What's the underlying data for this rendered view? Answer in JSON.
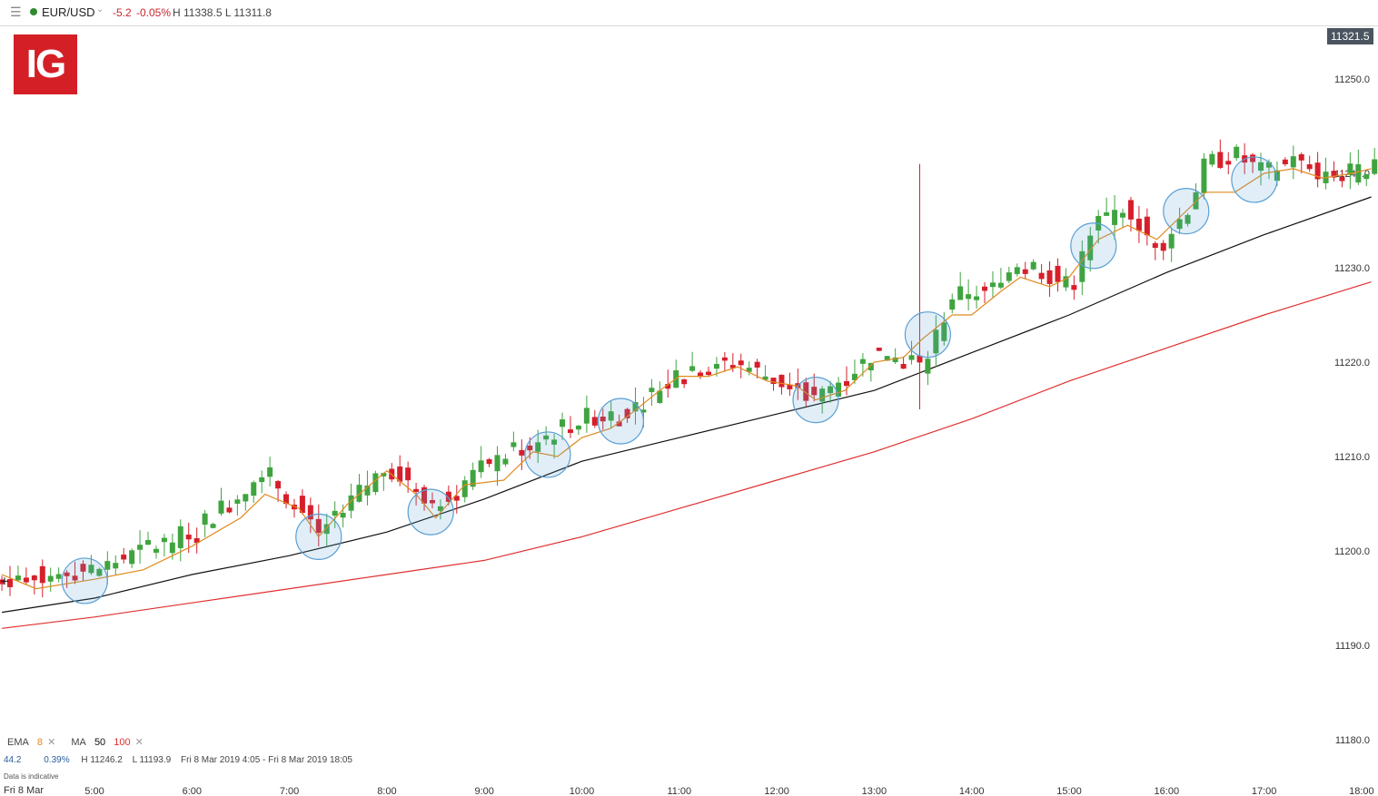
{
  "header": {
    "menu_icon": "hamburger-menu-icon",
    "symbol": "EUR/USD",
    "dropdown_icon": "chevron-down-icon",
    "change": "-5.2",
    "change_pct": "-0.05%",
    "high_low": "H 11338.5  L 11311.8",
    "colors": {
      "up_dot": "#2e8b2e",
      "down": "#c8262d"
    }
  },
  "logo": {
    "text": "IG",
    "color": "#d41f26"
  },
  "current_price_tag": "11321.5",
  "indicators": {
    "ema_label": "EMA",
    "ema_period": "8",
    "ma_label": "MA",
    "ma_period_1": "50",
    "ma_period_2": "100",
    "close_icon": "close-x-icon",
    "colors": {
      "ema": "#e08a1e",
      "ma50": "#111111",
      "ma100": "#e03030"
    }
  },
  "stats": {
    "value": "44.2",
    "pct": "0.39%",
    "high": "H 11246.2",
    "low": "L 11193.9",
    "range": "Fri 8 Mar 2019 4:05 - Fri 8 Mar 2019 18:05"
  },
  "note": "Data is indicative",
  "date_label": "Fri 8 Mar",
  "chart_data": {
    "type": "candlestick",
    "instrument": "EUR/USD",
    "x_ticks": [
      "5:00",
      "6:00",
      "7:00",
      "8:00",
      "9:00",
      "10:00",
      "11:00",
      "12:00",
      "13:00",
      "14:00",
      "15:00",
      "16:00",
      "17:00",
      "18:00"
    ],
    "y_ticks": [
      "11250.0",
      "11240.0",
      "11230.0",
      "11220.0",
      "11210.0",
      "11200.0",
      "11190.0",
      "11180.0"
    ],
    "ylim": [
      11178,
      11254
    ],
    "time_range": [
      "4:05",
      "18:05"
    ],
    "candle_interval_min": 5,
    "colors": {
      "up": "#3fa43f",
      "down": "#d61f2b",
      "ema": "#e08a1e",
      "ma50": "#111111",
      "ma100": "#e03030",
      "circle": "#5a9fd4"
    },
    "ma50": {
      "name": "MA 50",
      "points": [
        [
          4.05,
          11193.5
        ],
        [
          5.0,
          11195.0
        ],
        [
          6.0,
          11197.5
        ],
        [
          7.0,
          11199.5
        ],
        [
          8.0,
          11202.0
        ],
        [
          9.0,
          11205.5
        ],
        [
          10.0,
          11209.5
        ],
        [
          11.0,
          11212.0
        ],
        [
          12.0,
          11214.5
        ],
        [
          13.0,
          11217.0
        ],
        [
          14.0,
          11221.0
        ],
        [
          15.0,
          11225.0
        ],
        [
          16.0,
          11229.5
        ],
        [
          17.0,
          11233.5
        ],
        [
          18.1,
          11237.5
        ]
      ]
    },
    "ma100": {
      "name": "MA 100",
      "points": [
        [
          4.05,
          11191.8
        ],
        [
          5.0,
          11193.0
        ],
        [
          6.0,
          11194.5
        ],
        [
          7.0,
          11196.0
        ],
        [
          8.0,
          11197.5
        ],
        [
          9.0,
          11199.0
        ],
        [
          10.0,
          11201.5
        ],
        [
          11.0,
          11204.5
        ],
        [
          12.0,
          11207.5
        ],
        [
          13.0,
          11210.5
        ],
        [
          14.0,
          11214.0
        ],
        [
          15.0,
          11218.0
        ],
        [
          16.0,
          11221.5
        ],
        [
          17.0,
          11225.0
        ],
        [
          18.1,
          11228.5
        ]
      ]
    },
    "ema_anchors": [
      [
        4.05,
        11197.5
      ],
      [
        4.4,
        11196.0
      ],
      [
        5.0,
        11197.0
      ],
      [
        5.5,
        11198.0
      ],
      [
        6.0,
        11200.5
      ],
      [
        6.5,
        11203.5
      ],
      [
        6.75,
        11206.0
      ],
      [
        7.1,
        11204.5
      ],
      [
        7.3,
        11201.5
      ],
      [
        7.6,
        11205.0
      ],
      [
        8.0,
        11208.5
      ],
      [
        8.3,
        11206.0
      ],
      [
        8.5,
        11203.5
      ],
      [
        8.8,
        11207.0
      ],
      [
        9.2,
        11207.5
      ],
      [
        9.5,
        11210.5
      ],
      [
        9.75,
        11210.0
      ],
      [
        10.0,
        11212.0
      ],
      [
        10.3,
        11213.0
      ],
      [
        10.5,
        11214.5
      ],
      [
        10.8,
        11217.0
      ],
      [
        11.0,
        11218.5
      ],
      [
        11.3,
        11218.5
      ],
      [
        11.6,
        11219.5
      ],
      [
        11.9,
        11218.0
      ],
      [
        12.2,
        11217.5
      ],
      [
        12.4,
        11216.0
      ],
      [
        12.7,
        11217.0
      ],
      [
        13.0,
        11220.0
      ],
      [
        13.3,
        11220.5
      ],
      [
        13.5,
        11222.5
      ],
      [
        13.8,
        11225.0
      ],
      [
        14.0,
        11225.0
      ],
      [
        14.3,
        11227.5
      ],
      [
        14.5,
        11229.0
      ],
      [
        14.8,
        11228.0
      ],
      [
        15.0,
        11229.0
      ],
      [
        15.3,
        11233.0
      ],
      [
        15.6,
        11234.5
      ],
      [
        15.9,
        11233.0
      ],
      [
        16.1,
        11235.0
      ],
      [
        16.4,
        11238.0
      ],
      [
        16.7,
        11238.0
      ],
      [
        17.0,
        11240.0
      ],
      [
        17.3,
        11240.5
      ],
      [
        17.6,
        11239.5
      ],
      [
        17.9,
        11240.0
      ],
      [
        18.1,
        11240.5
      ]
    ],
    "trend_anchors": [
      [
        4.05,
        11197.0
      ],
      [
        5.0,
        11198.0
      ],
      [
        6.0,
        11202.0
      ],
      [
        6.75,
        11208.5
      ],
      [
        7.3,
        11202.0
      ],
      [
        8.0,
        11209.0
      ],
      [
        8.5,
        11205.0
      ],
      [
        9.0,
        11209.0
      ],
      [
        9.5,
        11211.5
      ],
      [
        10.0,
        11214.0
      ],
      [
        10.5,
        11215.0
      ],
      [
        11.0,
        11219.0
      ],
      [
        11.6,
        11220.0
      ],
      [
        12.0,
        11218.0
      ],
      [
        12.4,
        11216.0
      ],
      [
        13.0,
        11221.0
      ],
      [
        13.5,
        11219.5
      ],
      [
        13.8,
        11227.0
      ],
      [
        14.2,
        11227.5
      ],
      [
        14.5,
        11231.0
      ],
      [
        15.0,
        11228.0
      ],
      [
        15.3,
        11235.0
      ],
      [
        15.6,
        11236.5
      ],
      [
        15.9,
        11232.0
      ],
      [
        16.2,
        11236.0
      ],
      [
        16.4,
        11241.0
      ],
      [
        16.7,
        11242.0
      ],
      [
        17.0,
        11240.0
      ],
      [
        17.3,
        11241.5
      ],
      [
        17.6,
        11239.5
      ],
      [
        18.1,
        11240.5
      ]
    ],
    "spikes": [
      {
        "time": 13.45,
        "high": 11241.0,
        "low": 11215.0
      }
    ],
    "highlight_times": [
      4.9,
      7.3,
      8.45,
      9.65,
      10.4,
      12.4,
      13.55,
      15.25,
      16.2,
      16.9
    ]
  }
}
